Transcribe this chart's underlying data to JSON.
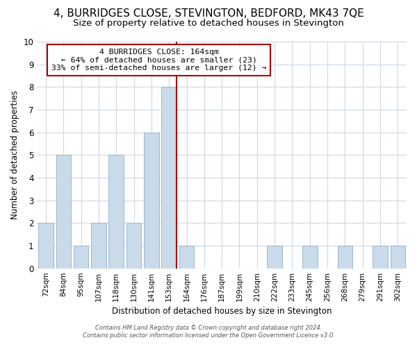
{
  "title": "4, BURRIDGES CLOSE, STEVINGTON, BEDFORD, MK43 7QE",
  "subtitle": "Size of property relative to detached houses in Stevington",
  "xlabel": "Distribution of detached houses by size in Stevington",
  "ylabel": "Number of detached properties",
  "bar_labels": [
    "72sqm",
    "84sqm",
    "95sqm",
    "107sqm",
    "118sqm",
    "130sqm",
    "141sqm",
    "153sqm",
    "164sqm",
    "176sqm",
    "187sqm",
    "199sqm",
    "210sqm",
    "222sqm",
    "233sqm",
    "245sqm",
    "256sqm",
    "268sqm",
    "279sqm",
    "291sqm",
    "302sqm"
  ],
  "bar_values": [
    2,
    5,
    1,
    2,
    5,
    2,
    6,
    8,
    1,
    0,
    0,
    0,
    0,
    1,
    0,
    1,
    0,
    1,
    0,
    1,
    1
  ],
  "bar_color": "#c9daea",
  "bar_edgecolor": "#9ab8cc",
  "highlight_bar_index": 7,
  "highlight_line_color": "#aa0000",
  "ylim": [
    0,
    10
  ],
  "yticks": [
    0,
    1,
    2,
    3,
    4,
    5,
    6,
    7,
    8,
    9,
    10
  ],
  "annotation_title": "4 BURRIDGES CLOSE: 164sqm",
  "annotation_line1": "← 64% of detached houses are smaller (23)",
  "annotation_line2": "33% of semi-detached houses are larger (12) →",
  "annotation_box_facecolor": "#ffffff",
  "annotation_box_edgecolor": "#aa0000",
  "footer_line1": "Contains HM Land Registry data © Crown copyright and database right 2024.",
  "footer_line2": "Contains public sector information licensed under the Open Government Licence v3.0.",
  "background_color": "#ffffff",
  "grid_color": "#ccd8e4",
  "title_fontsize": 11,
  "subtitle_fontsize": 9.5,
  "title_fontweight": "normal"
}
